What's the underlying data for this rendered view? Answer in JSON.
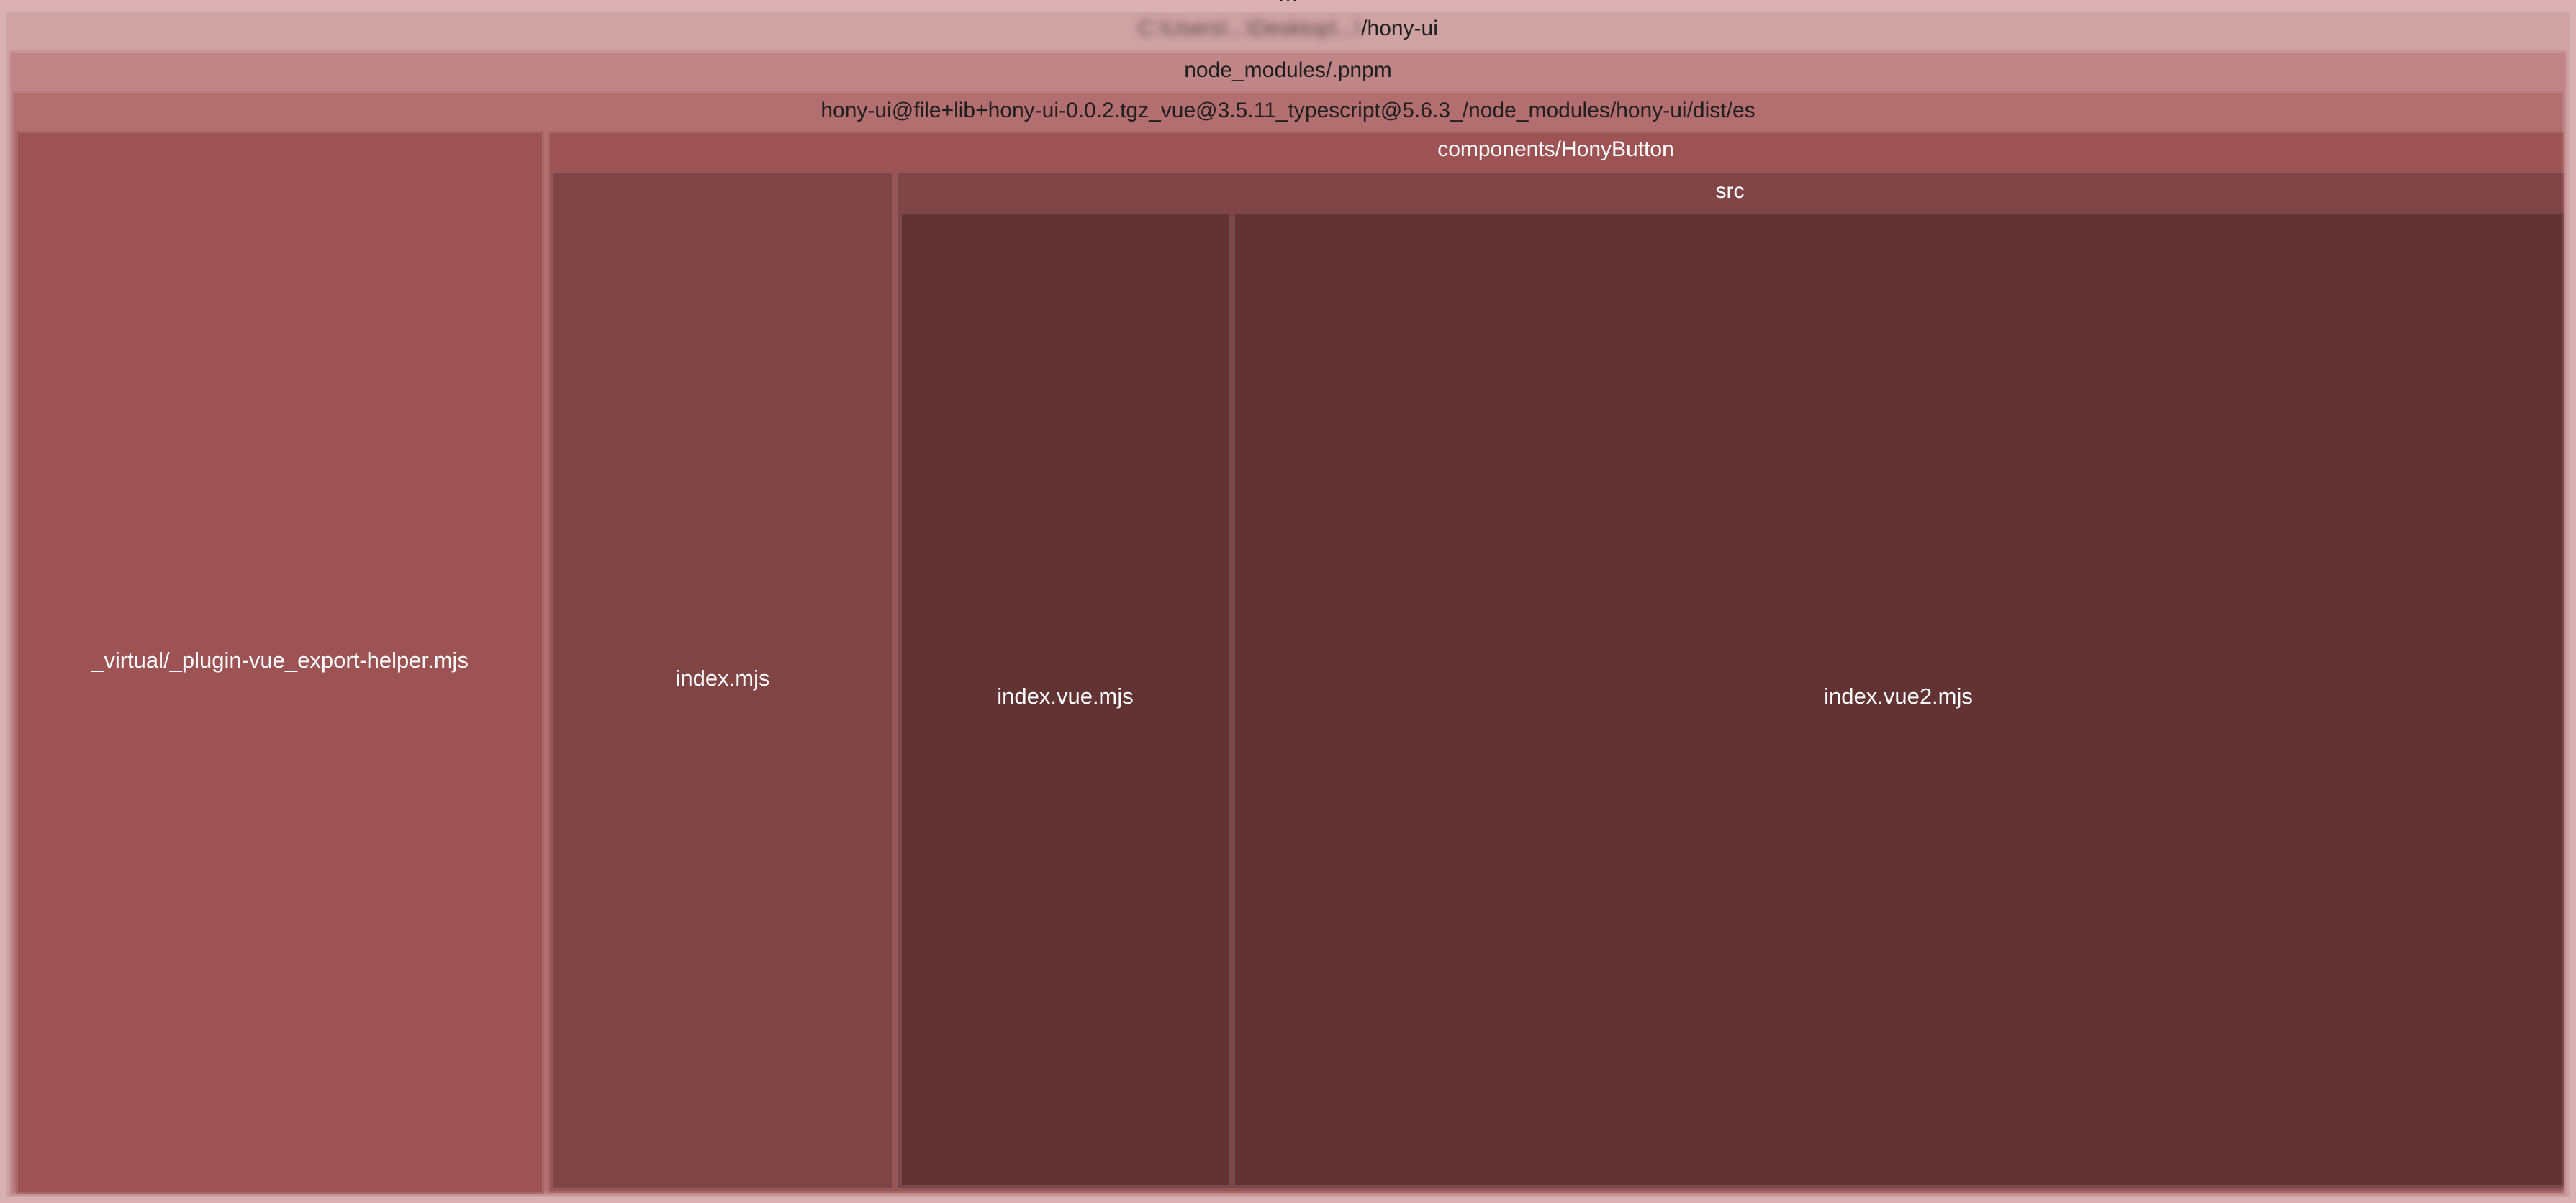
{
  "treemap": {
    "root": {
      "label_hidden": "…",
      "color": "#dbb0b2"
    },
    "project": {
      "label_blurred_prefix": "C:\\Users\\...\\Desktop\\...\\",
      "label_visible": "/hony-ui",
      "color": "#cfa2a4"
    },
    "pnpm": {
      "label": "node_modules/.pnpm",
      "color": "#c08587"
    },
    "package": {
      "label": "hony-ui@file+lib+hony-ui-0.0.2.tgz_vue@3.5.11_typescript@5.6.3_/node_modules/hony-ui/dist/es",
      "color": "#b36e70"
    },
    "virtual_helper": {
      "label": "_virtual/_plugin-vue_export-helper.mjs",
      "color": "#9d5353"
    },
    "components": {
      "label": "components/HonyButton",
      "color": "#9d5353"
    },
    "index_mjs": {
      "label": "index.mjs",
      "color": "#814444"
    },
    "src": {
      "label": "src",
      "color": "#814444"
    },
    "index_vue_mjs": {
      "label": "index.vue.mjs",
      "color": "#633334"
    },
    "index_vue2_mjs": {
      "label": "index.vue2.mjs",
      "color": "#633334"
    }
  }
}
